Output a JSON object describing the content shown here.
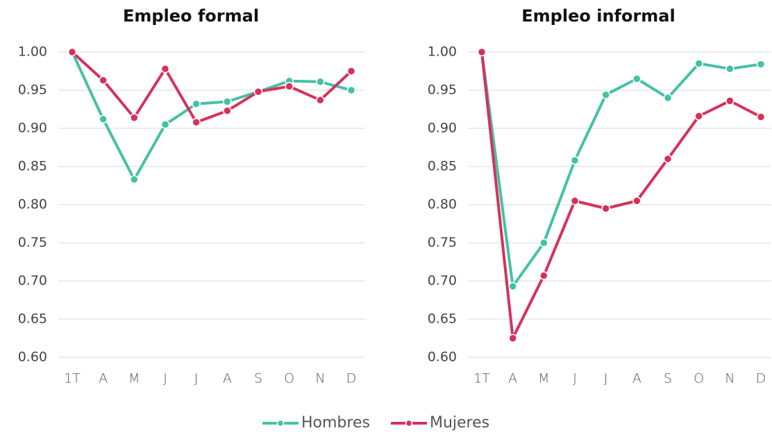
{
  "chart_data": [
    {
      "type": "line",
      "title": "Empleo formal",
      "categories": [
        "1T",
        "A",
        "M",
        "J",
        "J",
        "A",
        "S",
        "O",
        "N",
        "D"
      ],
      "series": [
        {
          "name": "Hombres",
          "color": "#45c1a4",
          "values": [
            1.0,
            0.912,
            0.833,
            0.905,
            0.932,
            0.935,
            0.948,
            0.962,
            0.961,
            0.95
          ]
        },
        {
          "name": "Mujeres",
          "color": "#d6315a",
          "values": [
            1.0,
            0.963,
            0.914,
            0.978,
            0.908,
            0.923,
            0.948,
            0.955,
            0.937,
            0.975
          ]
        }
      ],
      "ylim": [
        0.6,
        1.0
      ],
      "yticks": [
        {
          "value": 0.6,
          "label": "0.60"
        },
        {
          "value": 0.65,
          "label": "0.65"
        },
        {
          "value": 0.7,
          "label": "0.70"
        },
        {
          "value": 0.75,
          "label": "0.75"
        },
        {
          "value": 0.8,
          "label": "0.80"
        },
        {
          "value": 0.85,
          "label": "0.85"
        },
        {
          "value": 0.9,
          "label": "0.90"
        },
        {
          "value": 0.95,
          "label": "0.95"
        },
        {
          "value": 1.0,
          "label": "1.00"
        }
      ],
      "grid": true
    },
    {
      "type": "line",
      "title": "Empleo informal",
      "categories": [
        "1T",
        "A",
        "M",
        "J",
        "J",
        "A",
        "S",
        "O",
        "N",
        "D"
      ],
      "series": [
        {
          "name": "Hombres",
          "color": "#45c1a4",
          "values": [
            1.0,
            0.693,
            0.75,
            0.858,
            0.944,
            0.965,
            0.94,
            0.985,
            0.978,
            0.984
          ]
        },
        {
          "name": "Mujeres",
          "color": "#d6315a",
          "values": [
            1.0,
            0.625,
            0.707,
            0.805,
            0.795,
            0.805,
            0.86,
            0.916,
            0.936,
            0.915
          ]
        }
      ],
      "ylim": [
        0.6,
        1.0
      ],
      "yticks": [
        {
          "value": 0.6,
          "label": "0.60"
        },
        {
          "value": 0.65,
          "label": "0.65"
        },
        {
          "value": 0.7,
          "label": "0.70"
        },
        {
          "value": 0.75,
          "label": "0.75"
        },
        {
          "value": 0.8,
          "label": "0.80"
        },
        {
          "value": 0.85,
          "label": "0.85"
        },
        {
          "value": 0.9,
          "label": "0.90"
        },
        {
          "value": 0.95,
          "label": "0.95"
        },
        {
          "value": 1.0,
          "label": "1.00"
        }
      ],
      "grid": true
    }
  ]
}
